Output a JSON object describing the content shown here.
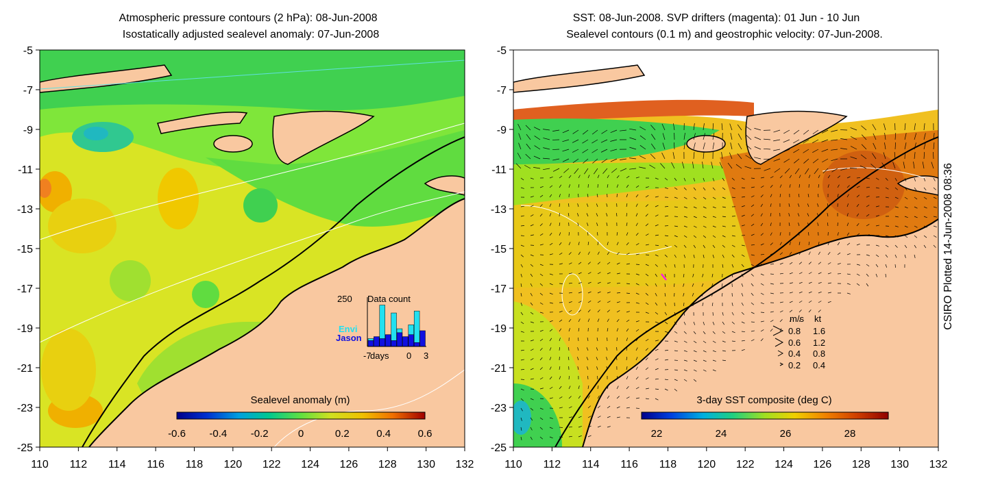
{
  "left_panel": {
    "title_line1": "Atmospheric pressure contours (2 hPa): 08-Jun-2008",
    "title_line2": "Isostatically adjusted sealevel anomaly: 07-Jun-2008",
    "colorbar_title": "Sealevel anomaly (m)",
    "colorbar_ticks": [
      "-0.6",
      "-0.4",
      "-0.2",
      "0",
      "0.2",
      "0.4",
      "0.6"
    ],
    "inset": {
      "title": "Data count",
      "ymax_label": "250",
      "series": [
        {
          "name": "Envi",
          "color": "#22e0f0"
        },
        {
          "name": "Jason",
          "color": "#1010e0"
        }
      ],
      "x_labels": [
        "-7",
        "days",
        "0",
        "3"
      ]
    }
  },
  "right_panel": {
    "title_line1": "SST: 08-Jun-2008. SVP drifters (magenta): 01 Jun - 10 Jun",
    "title_line2": "Sealevel contours (0.1 m) and geostrophic velocity: 07-Jun-2008.",
    "colorbar_title": "3-day SST composite (deg C)",
    "colorbar_ticks": [
      "22",
      "24",
      "26",
      "28"
    ],
    "velocity_legend": {
      "header_ms": "m/s",
      "header_kt": "kt",
      "rows": [
        {
          "ms": "0.8",
          "kt": "1.6"
        },
        {
          "ms": "0.6",
          "kt": "1.2"
        },
        {
          "ms": "0.4",
          "kt": "0.8"
        },
        {
          "ms": "0.2",
          "kt": "0.4"
        }
      ]
    }
  },
  "axes": {
    "x_ticks": [
      "110",
      "112",
      "114",
      "116",
      "118",
      "120",
      "122",
      "124",
      "126",
      "128",
      "130",
      "132"
    ],
    "y_ticks": [
      "-5",
      "-7",
      "-9",
      "-11",
      "-13",
      "-15",
      "-17",
      "-19",
      "-21",
      "-23",
      "-25"
    ]
  },
  "credit": "CSIRO Plotted 14-Jun-2008 08:36",
  "chart_data": [
    {
      "type": "heatmap",
      "title": "Isostatically adjusted sealevel anomaly: 07-Jun-2008",
      "colorbar_label": "Sealevel anomaly (m)",
      "xlim": [
        110,
        132
      ],
      "ylim": [
        -25,
        -5
      ],
      "zlim": [
        -0.6,
        0.6
      ]
    },
    {
      "type": "heatmap",
      "title": "SST: 08-Jun-2008",
      "colorbar_label": "3-day SST composite (deg C)",
      "xlim": [
        110,
        132
      ],
      "ylim": [
        -25,
        -5
      ],
      "zlim": [
        21.5,
        29.5
      ]
    },
    {
      "type": "bar",
      "title": "Data count",
      "ylim": [
        0,
        250
      ],
      "x": [
        -7,
        -6,
        -5,
        -4,
        -3,
        -2,
        -1,
        0,
        1,
        2
      ],
      "series": [
        {
          "name": "Envi",
          "values": [
            40,
            0,
            210,
            20,
            170,
            90,
            0,
            110,
            180,
            0
          ]
        },
        {
          "name": "Jason",
          "values": [
            30,
            50,
            40,
            60,
            30,
            70,
            50,
            60,
            20,
            80
          ]
        }
      ]
    }
  ]
}
